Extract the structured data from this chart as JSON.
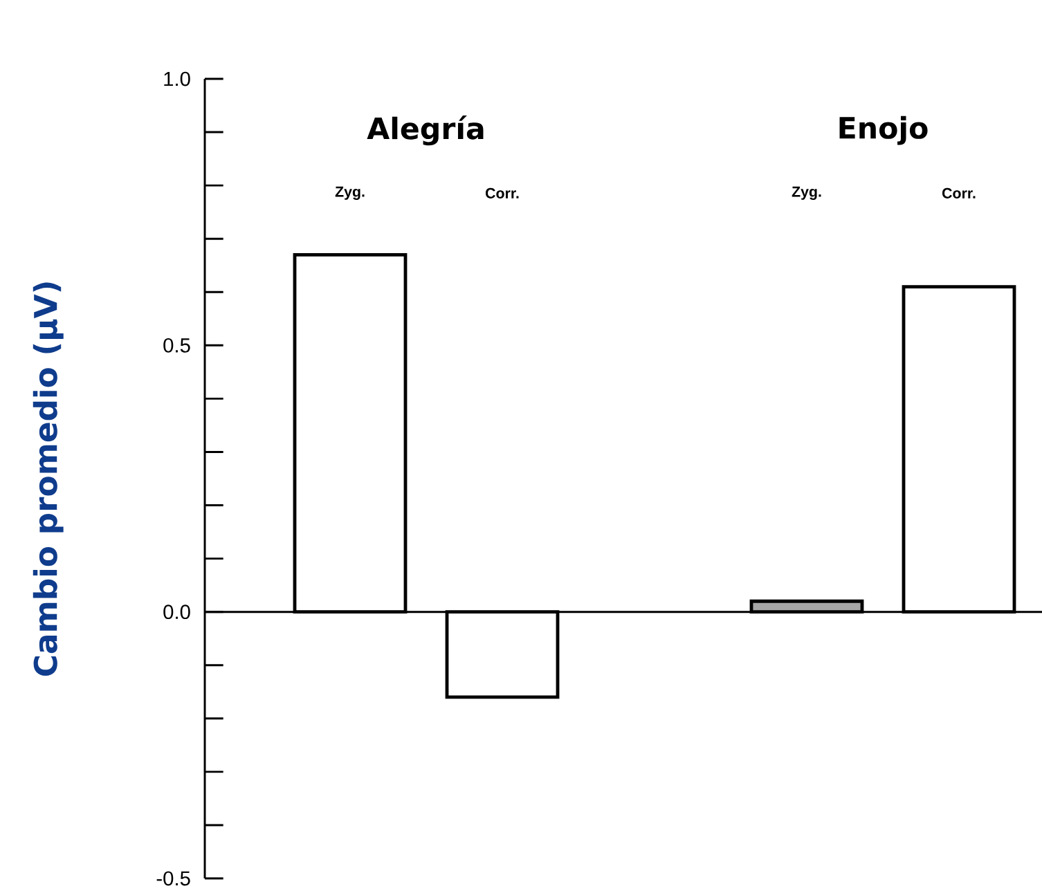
{
  "chart_data": {
    "type": "bar",
    "ylabel": "Cambio promedio   (μV)",
    "categories": [
      "Zyg.",
      "Corr.",
      null,
      "Zyg.",
      "Corr."
    ],
    "values": [
      0.67,
      -0.16,
      null,
      0.02,
      0.61
    ],
    "colors": [
      "#ffffff",
      "#ffffff",
      "#ffffff",
      "#a6a6a6",
      "#ffffff"
    ],
    "annotations": [
      "Alegría",
      "Enojo"
    ],
    "ylim": [
      -0.5,
      1.0
    ],
    "yticks": [
      {
        "value": -0.5,
        "label": "-0.5"
      },
      {
        "value": -0.4,
        "label": null
      },
      {
        "value": -0.3,
        "label": null
      },
      {
        "value": -0.2,
        "label": null
      },
      {
        "value": -0.1,
        "label": null
      },
      {
        "value": 0,
        "label": "0.0"
      },
      {
        "value": 0.1,
        "label": null
      },
      {
        "value": 0.2,
        "label": null
      },
      {
        "value": 0.3,
        "label": null
      },
      {
        "value": 0.4,
        "label": null
      },
      {
        "value": 0.5,
        "label": "0.5"
      },
      {
        "value": 0.6,
        "label": null
      },
      {
        "value": 0.7,
        "label": null
      },
      {
        "value": 0.8,
        "label": null
      },
      {
        "value": 0.9,
        "label": null
      },
      {
        "value": 1.0,
        "label": "1.0"
      }
    ]
  }
}
